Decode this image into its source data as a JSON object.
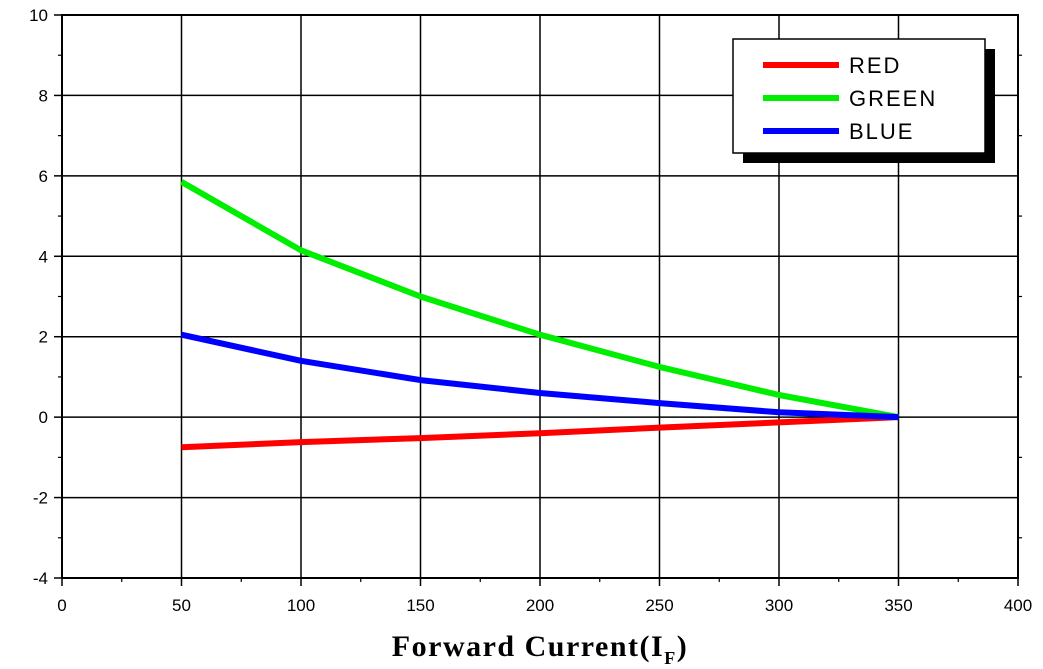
{
  "chart_data": {
    "type": "line",
    "title": "",
    "xlabel": "Forward Current(I",
    "xlabel_subscript": "F",
    "xlabel_close": ")",
    "ylabel": "",
    "xlim": [
      0,
      400
    ],
    "ylim": [
      -4,
      10
    ],
    "xticks": [
      0,
      50,
      100,
      150,
      200,
      250,
      300,
      350,
      400
    ],
    "yticks": [
      -4,
      -2,
      0,
      2,
      4,
      6,
      8,
      10
    ],
    "xtick_labels": [
      "0",
      "50",
      "100",
      "150",
      "200",
      "250",
      "300",
      "350",
      "400"
    ],
    "ytick_labels": [
      "-4",
      "-2",
      "0",
      "2",
      "4",
      "6",
      "8",
      "10"
    ],
    "grid": true,
    "legend_position": "top-right",
    "series": [
      {
        "name": "RED",
        "color": "#ff0000",
        "x": [
          50,
          100,
          150,
          200,
          250,
          300,
          350
        ],
        "y": [
          -0.75,
          -0.62,
          -0.52,
          -0.4,
          -0.26,
          -0.13,
          0
        ]
      },
      {
        "name": "GREEN",
        "color": "#00ee00",
        "x": [
          50,
          100,
          150,
          200,
          250,
          300,
          350
        ],
        "y": [
          5.85,
          4.15,
          3.0,
          2.05,
          1.25,
          0.55,
          0
        ]
      },
      {
        "name": "BLUE",
        "color": "#0000ff",
        "x": [
          50,
          100,
          150,
          200,
          250,
          300,
          350
        ],
        "y": [
          2.05,
          1.4,
          0.92,
          0.6,
          0.35,
          0.12,
          0
        ]
      }
    ]
  }
}
